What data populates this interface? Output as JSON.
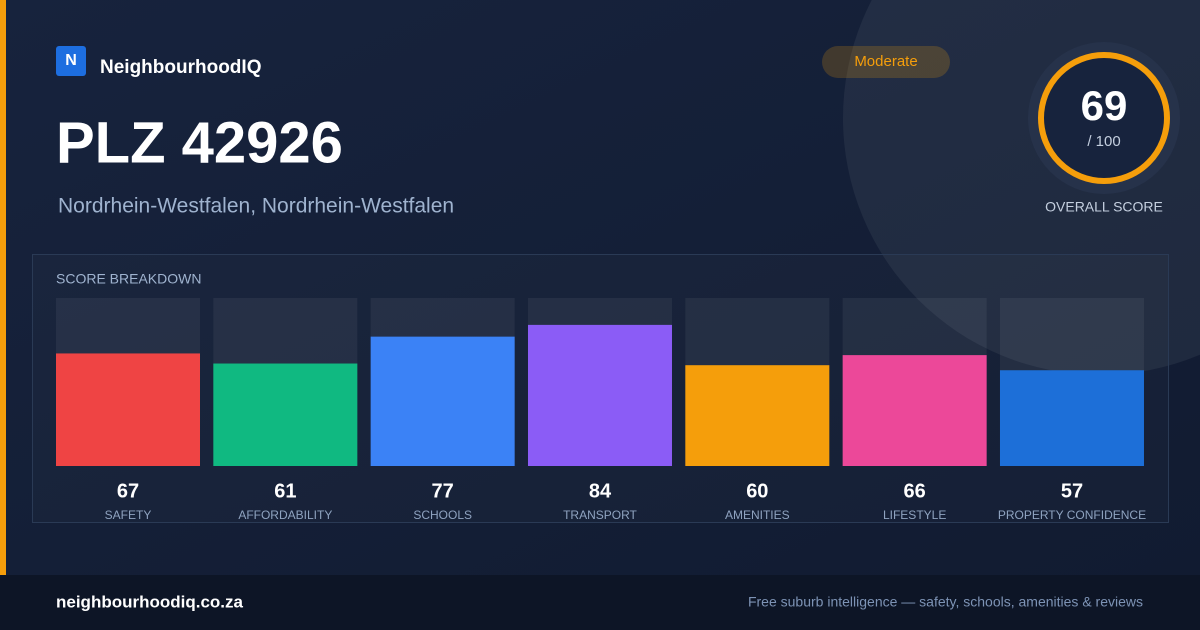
{
  "brand": "NeighbourhoodIQ",
  "logo": "N",
  "title": "PLZ 42926",
  "subtitle": "Nordrhein-Westfalen, Nordrhein-Westfalen",
  "badge": "Moderate",
  "score": {
    "value": "69",
    "suffix": "/ 100",
    "label": "OVERALL SCORE"
  },
  "chart_data": {
    "type": "bar",
    "title": "SCORE BREAKDOWN",
    "categories": [
      "SAFETY",
      "AFFORDABILITY",
      "SCHOOLS",
      "TRANSPORT",
      "AMENITIES",
      "LIFESTYLE",
      "PROPERTY CONFIDENCE"
    ],
    "values": [
      67,
      61,
      77,
      84,
      60,
      66,
      57
    ],
    "colors": [
      "#ef4444",
      "#10b981",
      "#3b82f6",
      "#8b5cf6",
      "#f59e0b",
      "#ec4899",
      "#1d6fd8"
    ],
    "ylim": [
      0,
      100
    ]
  },
  "footer": {
    "site": "neighbourhoodiq.co.za",
    "tagline": "Free suburb intelligence — safety, schools, amenities & reviews"
  }
}
